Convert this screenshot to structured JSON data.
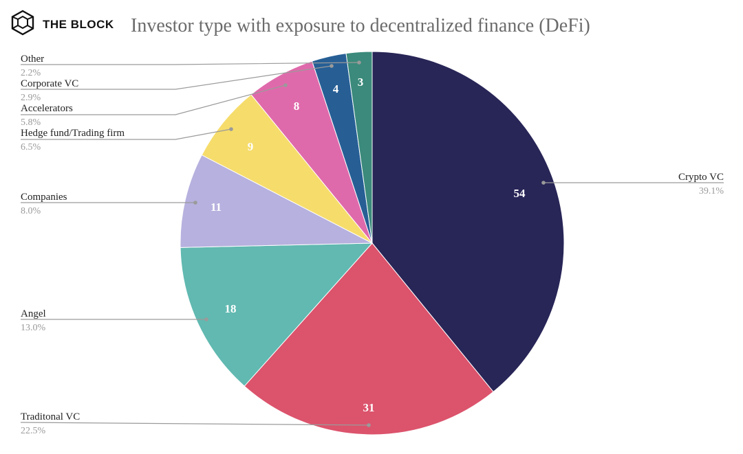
{
  "brand": {
    "name": "THE BLOCK",
    "logo_icon": "the-block-hexagon-cube-icon"
  },
  "chart_data": {
    "type": "pie",
    "title": "Investor type with exposure to decentralized finance (DeFi)",
    "start_angle_deg": 0,
    "direction": "clockwise",
    "slices": [
      {
        "label": "Crypto VC",
        "value": 54,
        "percent": "39.1%",
        "color": "#282557"
      },
      {
        "label": "Traditonal VC",
        "value": 31,
        "percent": "22.5%",
        "color": "#dc536c"
      },
      {
        "label": "Angel",
        "value": 18,
        "percent": "13.0%",
        "color": "#61b9b1"
      },
      {
        "label": "Companies",
        "value": 11,
        "percent": "8.0%",
        "color": "#b6b1de"
      },
      {
        "label": "Hedge fund/Trading firm",
        "value": 9,
        "percent": "6.5%",
        "color": "#f6dc6b"
      },
      {
        "label": "Accelerators",
        "value": 8,
        "percent": "5.8%",
        "color": "#df6aab"
      },
      {
        "label": "Corporate VC",
        "value": 4,
        "percent": "2.9%",
        "color": "#275f95"
      },
      {
        "label": "Other",
        "value": 3,
        "percent": "2.2%",
        "color": "#3b8a7b"
      }
    ]
  }
}
